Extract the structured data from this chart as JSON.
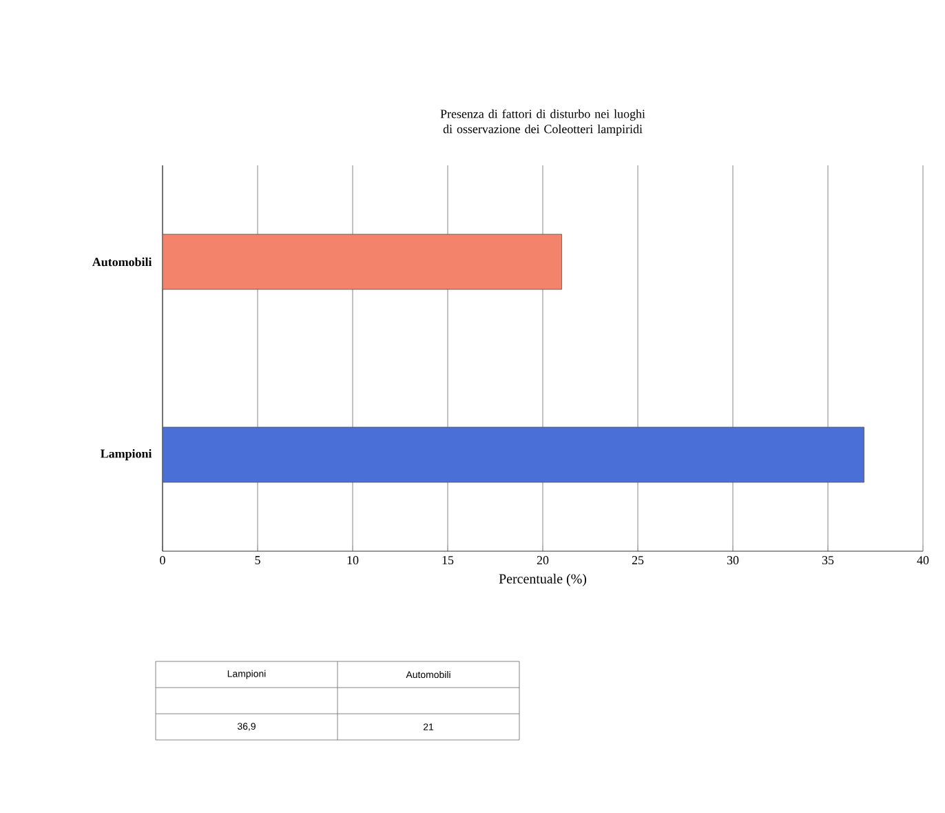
{
  "chart_data": {
    "type": "bar",
    "orientation": "horizontal",
    "title": "Presenza di fattori di disturbo nei luoghi di osservazione dei Coleotteri lampiridi",
    "xlabel": "Percentuale (%)",
    "categories": [
      "Automobili",
      "Lampioni"
    ],
    "values": [
      21,
      36.9
    ],
    "colors": [
      "#f4836b",
      "#4a6fd6"
    ],
    "annotations": [
      "36,9",
      "21"
    ],
    "xlim": [
      0,
      40
    ],
    "xticks": [
      0,
      5,
      10,
      15,
      20,
      25,
      30,
      35,
      40
    ],
    "grid": "x"
  }
}
